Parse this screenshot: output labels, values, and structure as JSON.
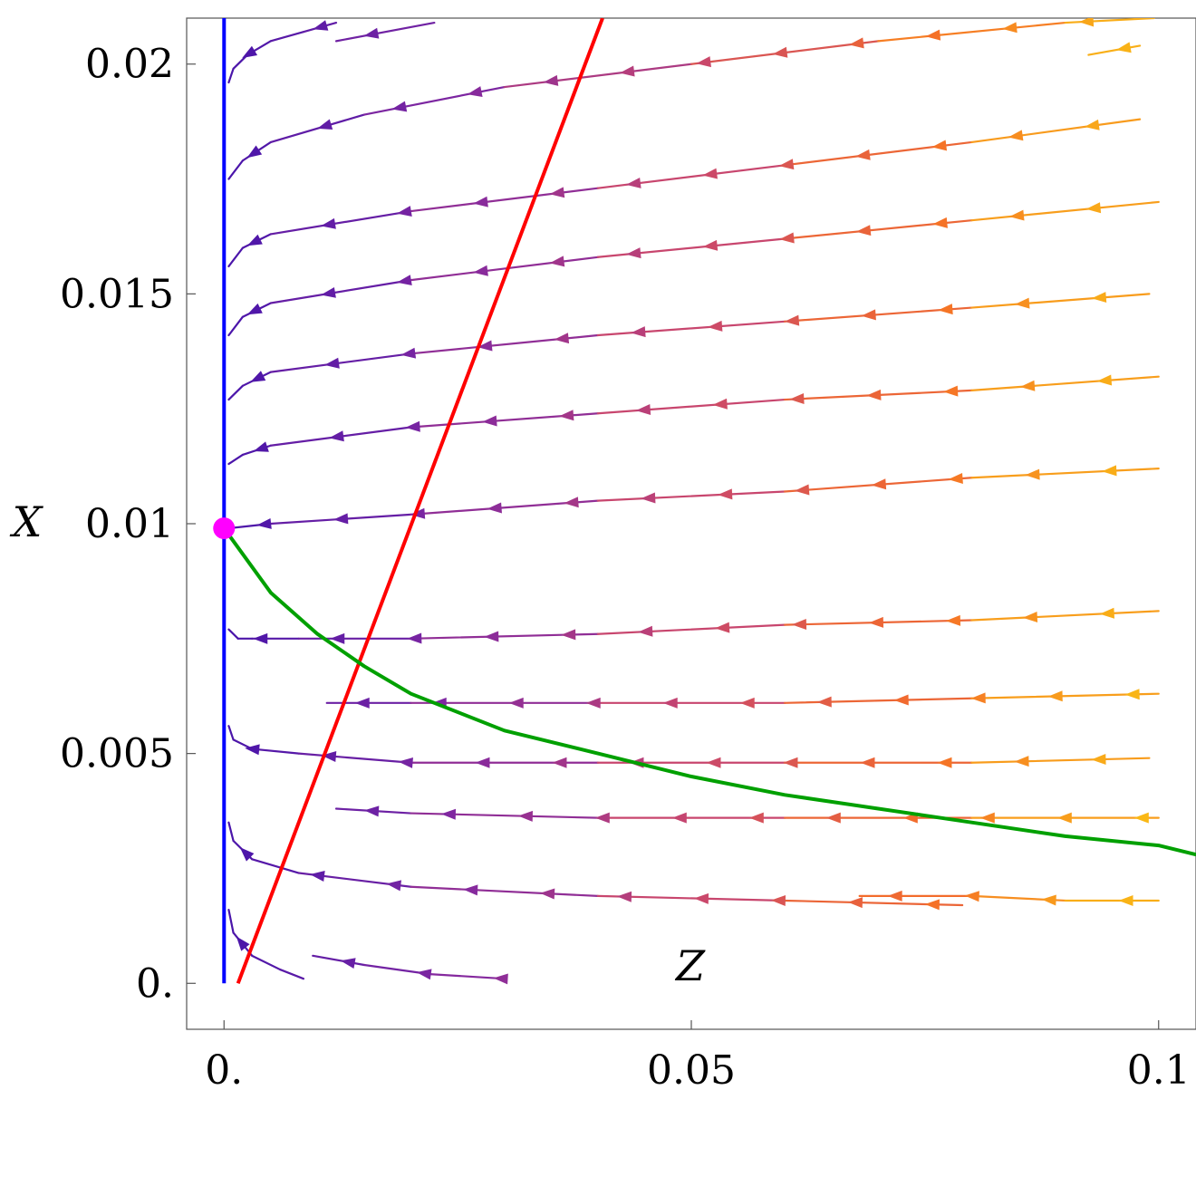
{
  "chart_data": {
    "type": "line",
    "title": "",
    "xlabel": "Z",
    "ylabel": "X",
    "xlim": [
      -0.004,
      0.104
    ],
    "ylim": [
      -0.001,
      0.021
    ],
    "grid": false,
    "x_ticks": [
      {
        "value": 0,
        "label": "0."
      },
      {
        "value": 0.05,
        "label": "0.05"
      },
      {
        "value": 0.1,
        "label": "0.1"
      }
    ],
    "y_ticks": [
      {
        "value": 0,
        "label": "0."
      },
      {
        "value": 0.005,
        "label": "0.005"
      },
      {
        "value": 0.01,
        "label": "0.01"
      },
      {
        "value": 0.015,
        "label": "0.015"
      },
      {
        "value": 0.02,
        "label": "0.02"
      }
    ],
    "series": [
      {
        "color": "#0000ff",
        "x": [
          0,
          0
        ],
        "y": [
          0,
          0.021
        ]
      },
      {
        "color": "#ff0000",
        "x": [
          0.0015,
          0.0405
        ],
        "y": [
          0,
          0.021
        ]
      },
      {
        "color": "#00a000",
        "x": [
          0,
          0.005,
          0.01,
          0.015,
          0.02,
          0.03,
          0.04,
          0.05,
          0.06,
          0.07,
          0.08,
          0.09,
          0.1,
          0.104
        ],
        "y": [
          0.0099,
          0.0085,
          0.0076,
          0.0069,
          0.0063,
          0.0055,
          0.005,
          0.0045,
          0.0041,
          0.0038,
          0.0035,
          0.0032,
          0.003,
          0.0028
        ]
      }
    ],
    "fixed_point": {
      "x": 0,
      "y": 0.0099,
      "color": "#ff00ff"
    },
    "streamlines": [
      {
        "x": [
          0.012,
          0.0225
        ],
        "y": [
          0.0205,
          0.0209
        ]
      },
      {
        "x": [
          0.0005,
          0.001,
          0.0025,
          0.005,
          0.0085,
          0.012
        ],
        "y": [
          0.0196,
          0.0199,
          0.0202,
          0.0205,
          0.0207,
          0.0209
        ]
      },
      {
        "x": [
          0.0005,
          0.002,
          0.005,
          0.015,
          0.03,
          0.05,
          0.07,
          0.09,
          0.0995
        ],
        "y": [
          0.0175,
          0.0179,
          0.0183,
          0.0189,
          0.0195,
          0.02,
          0.0205,
          0.0209,
          0.021
        ]
      },
      {
        "x": [
          0.0005,
          0.002,
          0.005,
          0.02,
          0.04,
          0.06,
          0.08,
          0.098
        ],
        "y": [
          0.0156,
          0.016,
          0.0163,
          0.0168,
          0.0173,
          0.0178,
          0.0183,
          0.0188
        ]
      },
      {
        "x": [
          0.0005,
          0.002,
          0.005,
          0.02,
          0.04,
          0.06,
          0.08,
          0.1
        ],
        "y": [
          0.0141,
          0.0145,
          0.0148,
          0.0153,
          0.0158,
          0.0162,
          0.0166,
          0.017
        ]
      },
      {
        "x": [
          0.0005,
          0.002,
          0.005,
          0.02,
          0.04,
          0.06,
          0.08,
          0.099
        ],
        "y": [
          0.0127,
          0.013,
          0.0133,
          0.0137,
          0.0141,
          0.0144,
          0.0147,
          0.015
        ]
      },
      {
        "x": [
          0.0005,
          0.002,
          0.005,
          0.02,
          0.04,
          0.06,
          0.08,
          0.1
        ],
        "y": [
          0.0113,
          0.0115,
          0.0117,
          0.0121,
          0.0124,
          0.0127,
          0.0129,
          0.0132
        ]
      },
      {
        "x": [
          0.0005,
          0.005,
          0.02,
          0.04,
          0.06,
          0.08,
          0.1
        ],
        "y": [
          0.0099,
          0.01,
          0.0102,
          0.0105,
          0.0107,
          0.011,
          0.0112
        ]
      },
      {
        "x": [
          0.0005,
          0.0015,
          0.003,
          0.008,
          0.02,
          0.04,
          0.06,
          0.08,
          0.1
        ],
        "y": [
          0.0077,
          0.0075,
          0.0075,
          0.0075,
          0.0075,
          0.0076,
          0.0078,
          0.0079,
          0.0081
        ]
      },
      {
        "x": [
          0.011,
          0.02,
          0.04,
          0.06,
          0.08,
          0.1
        ],
        "y": [
          0.0061,
          0.0061,
          0.0061,
          0.0061,
          0.0062,
          0.0063
        ]
      },
      {
        "x": [
          0.0005,
          0.001,
          0.003,
          0.008,
          0.02,
          0.04,
          0.06,
          0.08,
          0.099
        ],
        "y": [
          0.0056,
          0.0053,
          0.0051,
          0.005,
          0.0048,
          0.0048,
          0.0048,
          0.0048,
          0.0049
        ]
      },
      {
        "x": [
          0.012,
          0.02,
          0.04,
          0.06,
          0.08,
          0.1
        ],
        "y": [
          0.0038,
          0.0037,
          0.0036,
          0.0036,
          0.0036,
          0.0036
        ]
      },
      {
        "x": [
          0.0005,
          0.001,
          0.003,
          0.008,
          0.02,
          0.04,
          0.06,
          0.079
        ],
        "y": [
          0.0035,
          0.0031,
          0.0027,
          0.0024,
          0.0021,
          0.0019,
          0.0018,
          0.0017
        ]
      },
      {
        "x": [
          0.068,
          0.08,
          0.09,
          0.1
        ],
        "y": [
          0.0019,
          0.0019,
          0.0018,
          0.0018
        ]
      },
      {
        "x": [
          0.0005,
          0.001,
          0.003,
          0.006,
          0.0085
        ],
        "y": [
          0.0016,
          0.0011,
          0.0006,
          0.0003,
          0.0001
        ]
      },
      {
        "x": [
          0.0095,
          0.015,
          0.022,
          0.03
        ],
        "y": [
          0.0006,
          0.0004,
          0.0002,
          0.0001
        ]
      },
      {
        "x": [
          0.0925,
          0.098
        ],
        "y": [
          0.0202,
          0.0204
        ]
      }
    ]
  }
}
